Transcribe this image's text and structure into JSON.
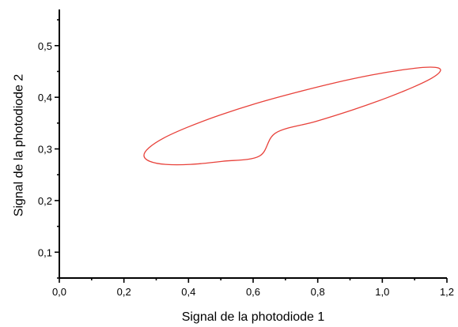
{
  "chart_data": {
    "type": "line",
    "title": "",
    "xlabel": "Signal de la photodiode 1",
    "ylabel": "Signal de la photodiode 2",
    "xlim": [
      0.0,
      1.2
    ],
    "ylim": [
      0.05,
      0.57
    ],
    "x_ticks": [
      0.0,
      0.2,
      0.4,
      0.6,
      0.8,
      1.0,
      1.2
    ],
    "x_tick_labels": [
      "0,0",
      "0,2",
      "0,4",
      "0,6",
      "0,8",
      "1,0",
      "1,2"
    ],
    "y_ticks": [
      0.1,
      0.2,
      0.3,
      0.4,
      0.5
    ],
    "y_tick_labels": [
      "0,1",
      "0,2",
      "0,3",
      "0,4",
      "0,5"
    ],
    "grid": false,
    "legend": "none",
    "series": [
      {
        "color": "#e8413a",
        "x": [
          0.67,
          0.793,
          0.91,
          1.014,
          1.097,
          1.153,
          1.179,
          1.172,
          1.132,
          1.061,
          0.966,
          0.853,
          0.731,
          0.609,
          0.495,
          0.397,
          0.323,
          0.277,
          0.262,
          0.28,
          0.329,
          0.406,
          0.505,
          0.619,
          0.67
        ],
        "y": [
          0.331,
          0.353,
          0.376,
          0.399,
          0.42,
          0.437,
          0.45,
          0.457,
          0.458,
          0.453,
          0.443,
          0.428,
          0.409,
          0.388,
          0.365,
          0.342,
          0.321,
          0.302,
          0.287,
          0.276,
          0.27,
          0.27,
          0.276,
          0.286,
          0.331
        ]
      }
    ]
  },
  "colors": {
    "axis": "#000000",
    "curve": "#e8413a",
    "background": "#ffffff"
  }
}
